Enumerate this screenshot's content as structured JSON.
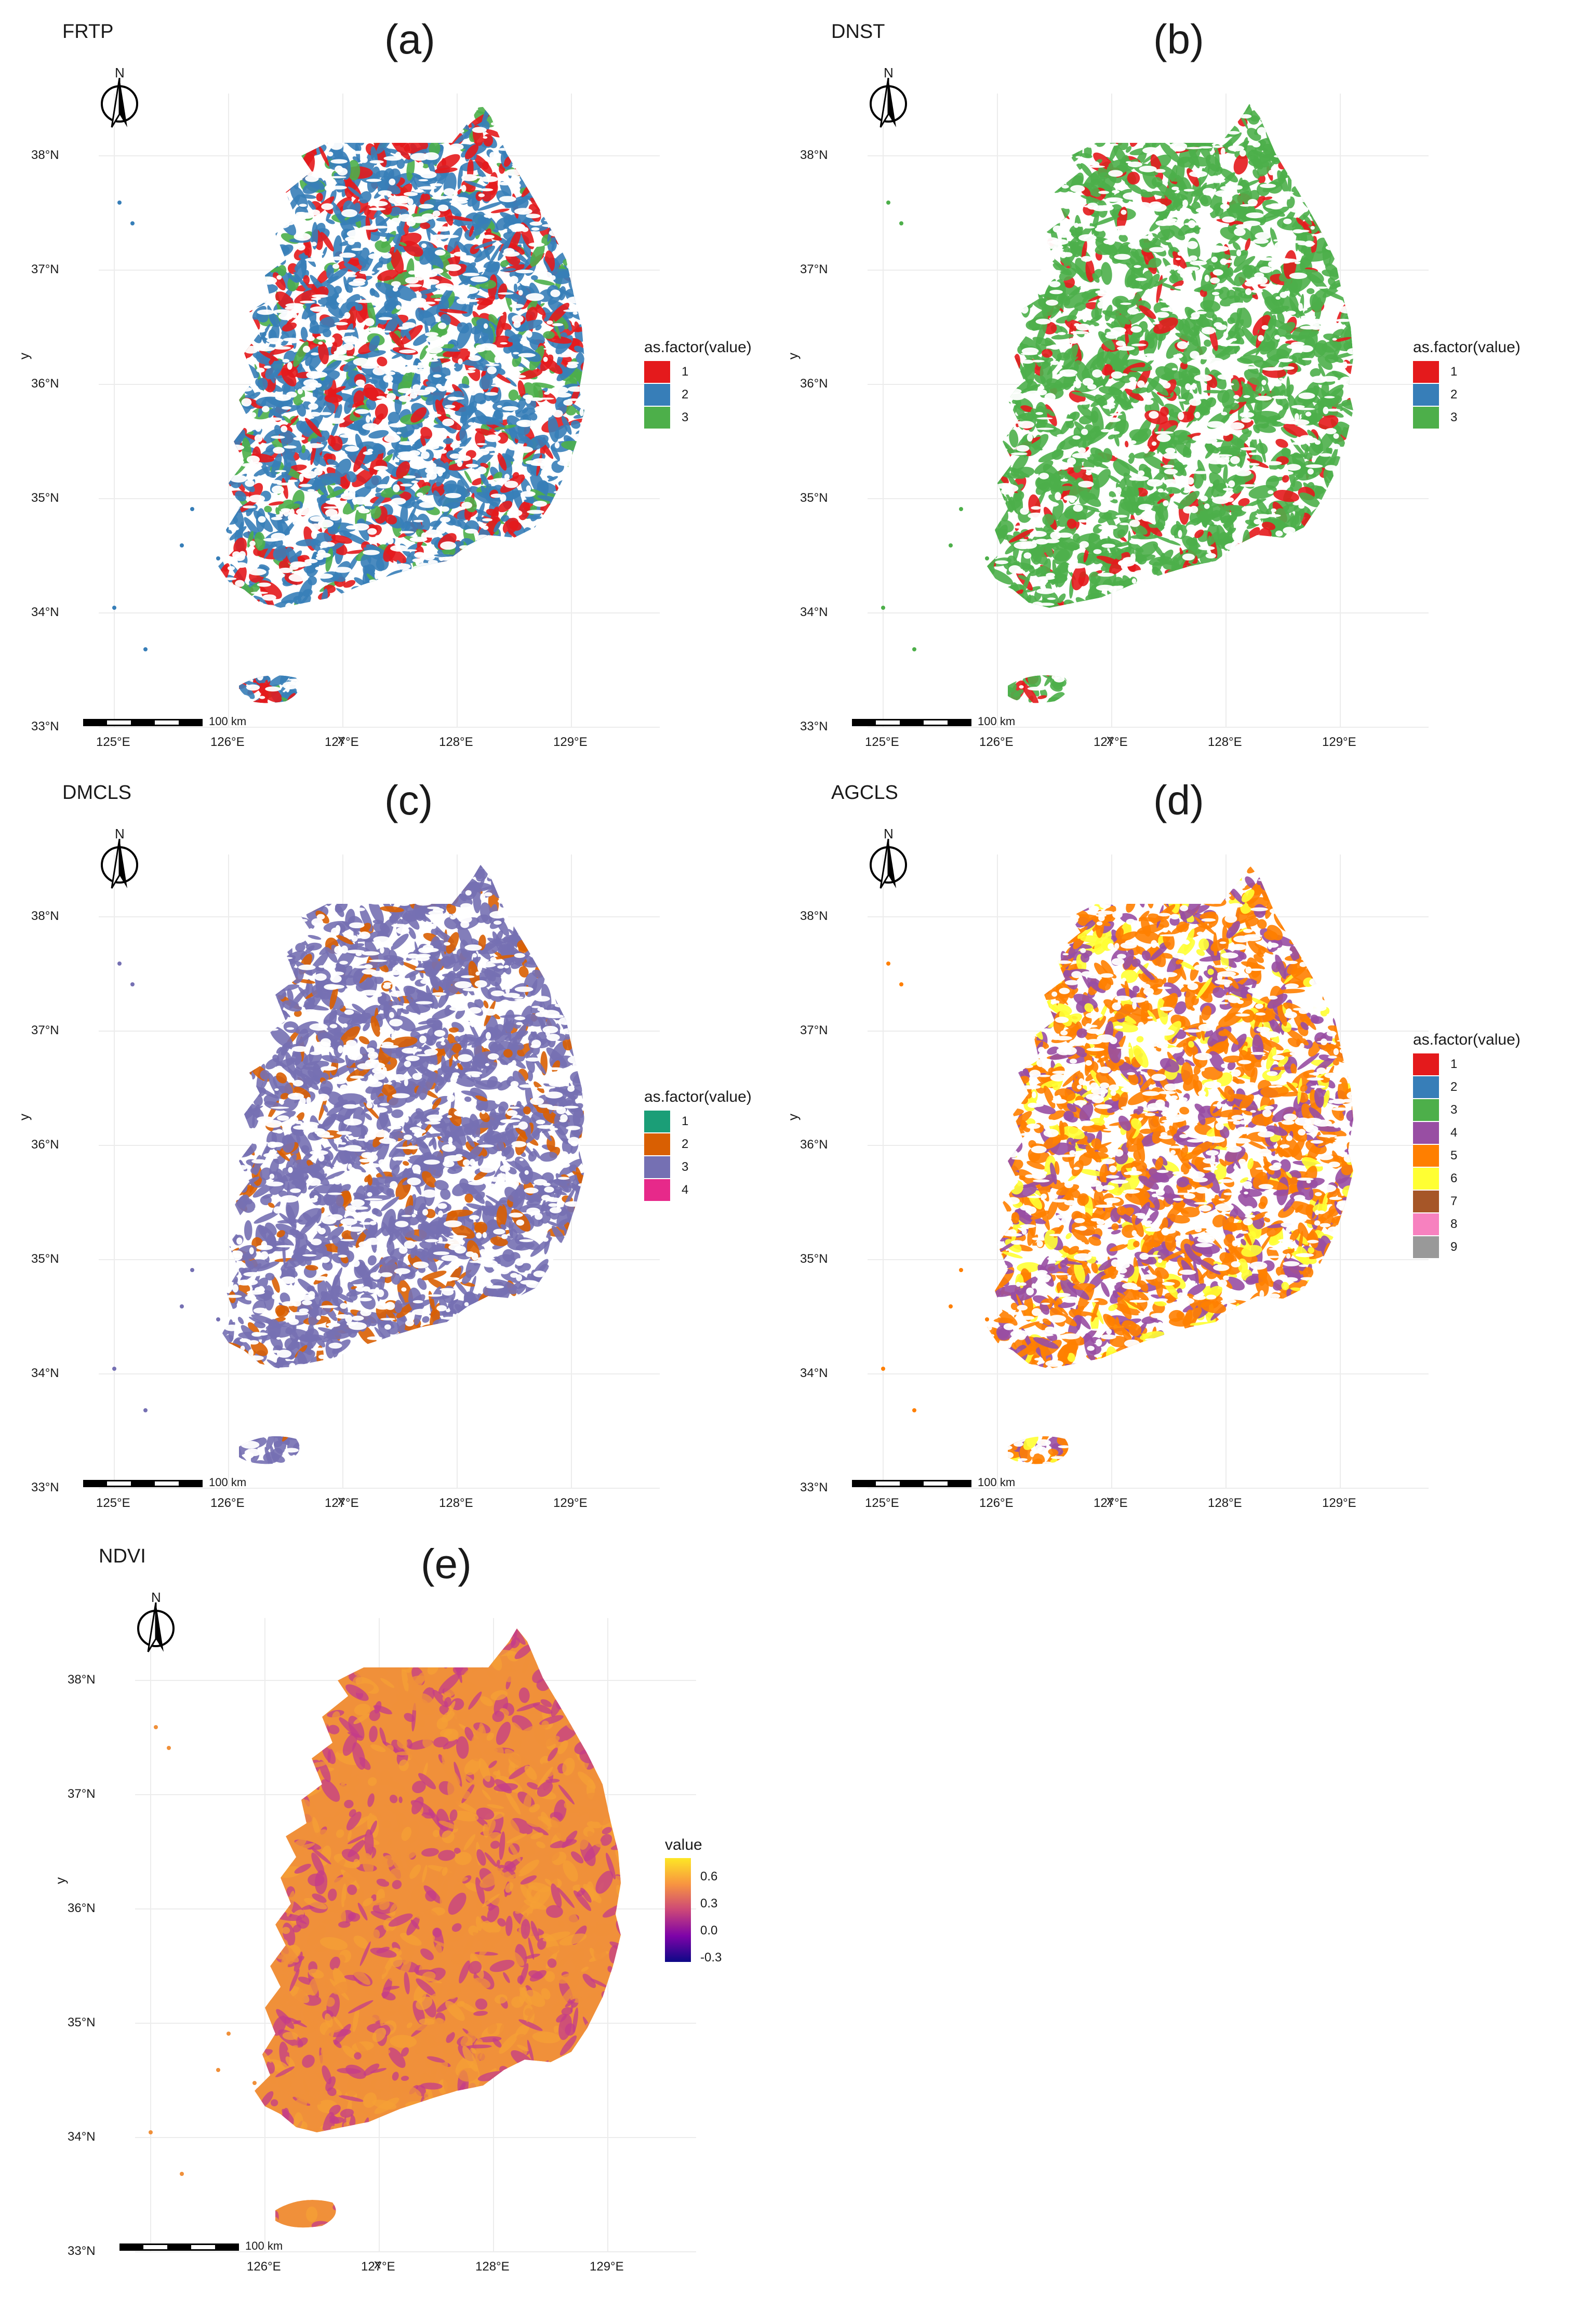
{
  "panels": [
    {
      "id": "a",
      "title": "FRTP",
      "letter": "(a)",
      "legend_type": "categorical",
      "legend_title": "as.factor(value)",
      "categories": [
        {
          "label": "1",
          "color": "#E41A1C"
        },
        {
          "label": "2",
          "color": "#377EB8"
        },
        {
          "label": "3",
          "color": "#4DAF4A"
        }
      ],
      "dominant_colors": [
        "#377EB8",
        "#E41A1C",
        "#4DAF4A"
      ]
    },
    {
      "id": "b",
      "title": "DNST",
      "letter": "(b)",
      "legend_type": "categorical",
      "legend_title": "as.factor(value)",
      "categories": [
        {
          "label": "1",
          "color": "#E41A1C"
        },
        {
          "label": "2",
          "color": "#377EB8"
        },
        {
          "label": "3",
          "color": "#4DAF4A"
        }
      ],
      "dominant_colors": [
        "#4DAF4A",
        "#4DAF4A",
        "#E41A1C"
      ]
    },
    {
      "id": "c",
      "title": "DMCLS",
      "letter": "(c)",
      "legend_type": "categorical",
      "legend_title": "as.factor(value)",
      "categories": [
        {
          "label": "1",
          "color": "#1B9E77"
        },
        {
          "label": "2",
          "color": "#D95F02"
        },
        {
          "label": "3",
          "color": "#7570B3"
        },
        {
          "label": "4",
          "color": "#E7298A"
        }
      ],
      "dominant_colors": [
        "#7570B3",
        "#7570B3",
        "#D95F02"
      ]
    },
    {
      "id": "d",
      "title": "AGCLS",
      "letter": "(d)",
      "legend_type": "categorical",
      "legend_title": "as.factor(value)",
      "categories": [
        {
          "label": "1",
          "color": "#E41A1C"
        },
        {
          "label": "2",
          "color": "#377EB8"
        },
        {
          "label": "3",
          "color": "#4DAF4A"
        },
        {
          "label": "4",
          "color": "#984EA3"
        },
        {
          "label": "5",
          "color": "#FF7F00"
        },
        {
          "label": "6",
          "color": "#FFFF33"
        },
        {
          "label": "7",
          "color": "#A65628"
        },
        {
          "label": "8",
          "color": "#F781BF"
        },
        {
          "label": "9",
          "color": "#999999"
        }
      ],
      "dominant_colors": [
        "#FF7F00",
        "#984EA3",
        "#FFFF33"
      ]
    },
    {
      "id": "e",
      "title": "NDVI",
      "letter": "(e)",
      "legend_type": "continuous",
      "legend_title": "value",
      "breaks": [
        "0.6",
        "0.3",
        "0.0",
        "-0.3"
      ],
      "gradient": [
        "#FDE725",
        "#F89540",
        "#CC4778",
        "#7E03A8",
        "#0D0887"
      ],
      "dominant_colors": [
        "#F0903A",
        "#C43C8A",
        "#F6A035"
      ]
    }
  ],
  "lat_ticks": [
    "38°N",
    "37°N",
    "36°N",
    "35°N",
    "34°N",
    "33°N"
  ],
  "lon_ticks": [
    "125°E",
    "126°E",
    "127°E",
    "128°E",
    "129°E"
  ],
  "lon_ticks_e": [
    "126°E",
    "127°E",
    "128°E",
    "129°E"
  ],
  "axis_x": "x",
  "axis_y": "y",
  "north_label": "N",
  "scale_label": "100 km"
}
